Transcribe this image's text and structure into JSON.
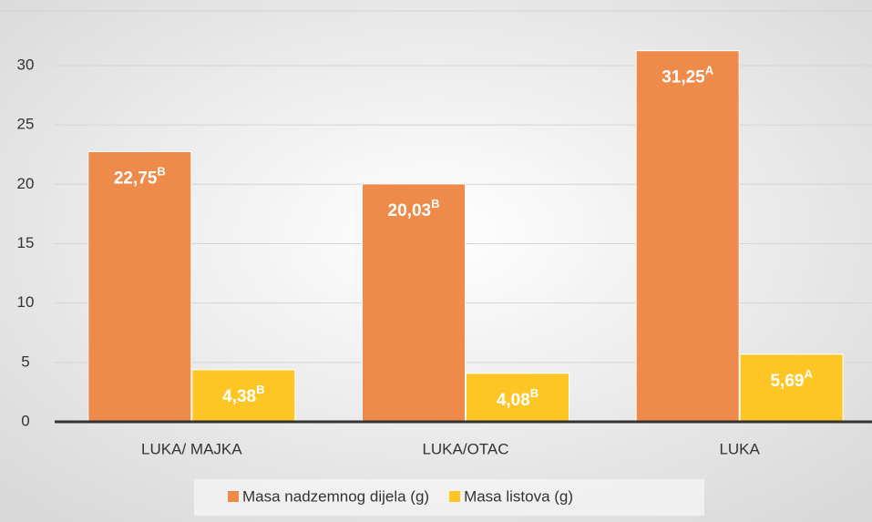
{
  "chart_data": {
    "type": "bar",
    "categories": [
      "LUKA/ MAJKA",
      "LUKA/OTAC",
      "LUKA"
    ],
    "series": [
      {
        "name": "Masa nadzemnog dijela (g)",
        "color": "#ee8a4a",
        "values": [
          22.75,
          20.03,
          31.25
        ],
        "value_labels": [
          "22,75",
          "20,03",
          "31,25"
        ],
        "value_letters": [
          "B",
          "B",
          "A"
        ]
      },
      {
        "name": "Masa listova (g)",
        "color": "#fdc624",
        "values": [
          4.38,
          4.08,
          5.69
        ],
        "value_labels": [
          "4,38",
          "4,08",
          "5,69"
        ],
        "value_letters": [
          "B",
          "B",
          "A"
        ]
      }
    ],
    "ylim": [
      0,
      34.6
    ],
    "yticks": [
      0,
      5,
      10,
      15,
      20,
      25,
      30
    ],
    "grid": true,
    "legend": "bottom"
  }
}
